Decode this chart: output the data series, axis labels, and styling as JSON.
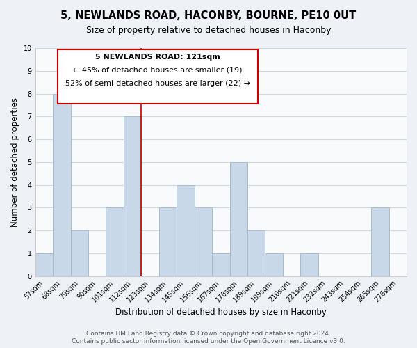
{
  "title": "5, NEWLANDS ROAD, HACONBY, BOURNE, PE10 0UT",
  "subtitle": "Size of property relative to detached houses in Haconby",
  "xlabel": "Distribution of detached houses by size in Haconby",
  "ylabel": "Number of detached properties",
  "bins": [
    "57sqm",
    "68sqm",
    "79sqm",
    "90sqm",
    "101sqm",
    "112sqm",
    "123sqm",
    "134sqm",
    "145sqm",
    "156sqm",
    "167sqm",
    "178sqm",
    "189sqm",
    "199sqm",
    "210sqm",
    "221sqm",
    "232sqm",
    "243sqm",
    "254sqm",
    "265sqm",
    "276sqm"
  ],
  "values": [
    1,
    8,
    2,
    0,
    3,
    7,
    0,
    3,
    4,
    3,
    1,
    5,
    2,
    1,
    0,
    1,
    0,
    0,
    0,
    3,
    0
  ],
  "bar_color": "#c8d8e8",
  "bar_edge_color": "#a8bece",
  "highlight_line_color": "#cc0000",
  "highlight_line_idx": 5.5,
  "ylim": [
    0,
    10
  ],
  "yticks": [
    0,
    1,
    2,
    3,
    4,
    5,
    6,
    7,
    8,
    9,
    10
  ],
  "annotation_title": "5 NEWLANDS ROAD: 121sqm",
  "annotation_line1": "← 45% of detached houses are smaller (19)",
  "annotation_line2": "52% of semi-detached houses are larger (22) →",
  "annotation_box_color": "#ffffff",
  "annotation_box_edge": "#cc0000",
  "footer_line1": "Contains HM Land Registry data © Crown copyright and database right 2024.",
  "footer_line2": "Contains public sector information licensed under the Open Government Licence v3.0.",
  "background_color": "#eef2f6",
  "plot_background_color": "#f8fafc",
  "grid_color": "#d0d8e4",
  "title_fontsize": 10.5,
  "subtitle_fontsize": 9,
  "axis_label_fontsize": 8.5,
  "tick_fontsize": 7,
  "footer_fontsize": 6.5,
  "annotation_fontsize": 8
}
